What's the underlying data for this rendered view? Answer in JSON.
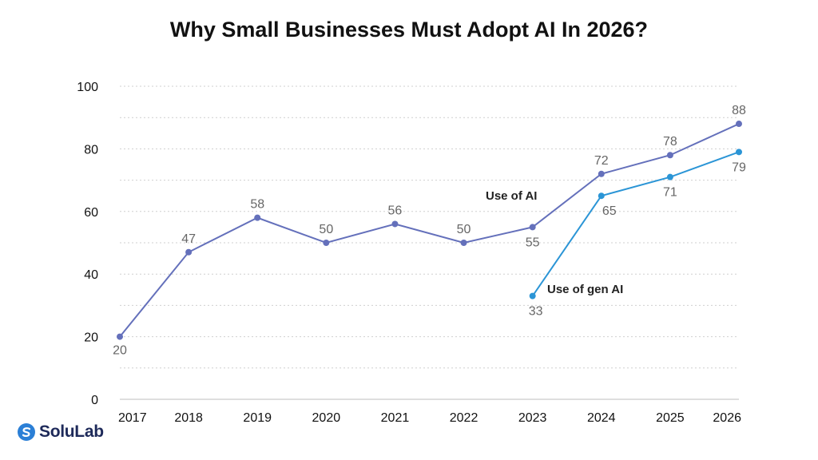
{
  "chart_data": {
    "type": "line",
    "title": "Why Small Businesses Must Adopt AI In 2026?",
    "xlabel": "",
    "ylabel": "",
    "categories": [
      "2017",
      "2018",
      "2019",
      "2020",
      "2021",
      "2022",
      "2023",
      "2024",
      "2025",
      "2026"
    ],
    "ylim": [
      0,
      100
    ],
    "yticks": [
      0,
      20,
      40,
      60,
      80,
      100
    ],
    "grid": true,
    "legend": "inline labels",
    "series": [
      {
        "name": "Use of AI",
        "color": "#6470bb",
        "values": [
          20,
          47,
          58,
          50,
          56,
          50,
          55,
          72,
          78,
          88
        ],
        "labels": [
          "20",
          "47",
          "58",
          "50",
          "56",
          "50",
          "55",
          "72",
          "78",
          "88"
        ]
      },
      {
        "name": "Use of gen AI",
        "color": "#2b95d6",
        "values": [
          null,
          null,
          null,
          null,
          null,
          null,
          33,
          65,
          71,
          79
        ],
        "labels": [
          null,
          null,
          null,
          null,
          null,
          null,
          "33",
          "65",
          "71",
          "79"
        ]
      }
    ]
  },
  "brand": {
    "name": "SoluLab",
    "icon": "solulab-logo-icon",
    "color": "#2b7fd6"
  }
}
